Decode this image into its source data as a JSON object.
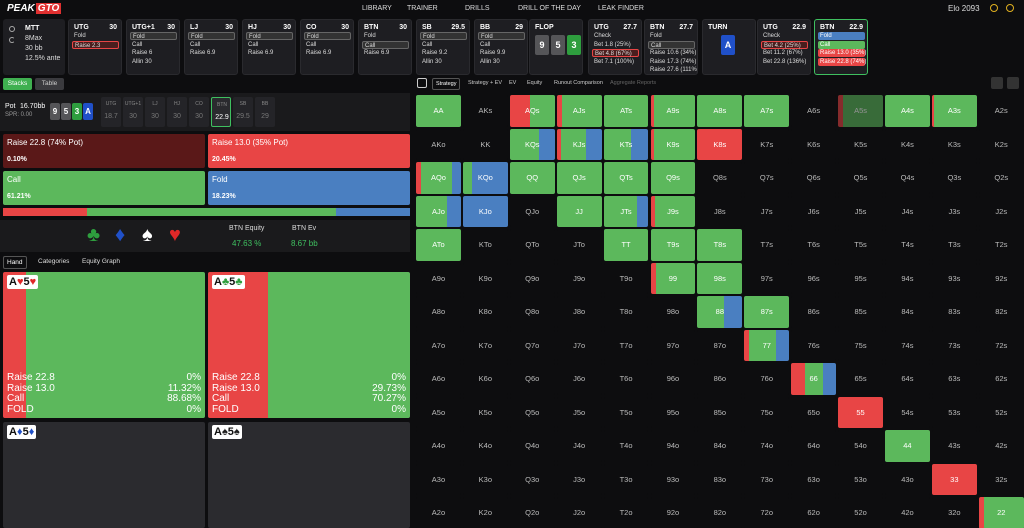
{
  "nav": {
    "logo_a": "PEAK",
    "logo_b": "GTO",
    "items": [
      "LIBRARY",
      "TRAINER",
      "DRILLS",
      "DRILL OF THE DAY",
      "LEAK FINDER"
    ],
    "elo": "Elo 2093"
  },
  "game_info": {
    "format": "MTT",
    "table": "8Max",
    "stack": "30 bb",
    "ante": "12.5% ante"
  },
  "action_strip": [
    {
      "kind": "player",
      "position": "UTG",
      "stack": 30,
      "options": [
        "Fold",
        "Raise 2.3"
      ],
      "selected": 1
    },
    {
      "kind": "player",
      "position": "UTG+1",
      "stack": 30,
      "options": [
        "Fold",
        "Call",
        "Raise 6",
        "Allin 30"
      ],
      "selected": 0
    },
    {
      "kind": "player",
      "position": "LJ",
      "stack": 30,
      "options": [
        "Fold",
        "Call",
        "Raise 6.9"
      ],
      "selected": 0
    },
    {
      "kind": "player",
      "position": "HJ",
      "stack": 30,
      "options": [
        "Fold",
        "Call",
        "Raise 6.9"
      ],
      "selected": 0
    },
    {
      "kind": "player",
      "position": "CO",
      "stack": 30,
      "options": [
        "Fold",
        "Call",
        "Raise 6.9"
      ],
      "selected": 0
    },
    {
      "kind": "player",
      "position": "BTN",
      "stack": 30,
      "options": [
        "Fold",
        "Call",
        "Raise 6.9"
      ],
      "selected": 1
    },
    {
      "kind": "player",
      "position": "SB",
      "stack": 29.5,
      "options": [
        "Fold",
        "Call",
        "Raise 9.2",
        "Allin 30"
      ],
      "selected": 0
    },
    {
      "kind": "player",
      "position": "BB",
      "stack": 29,
      "options": [
        "Fold",
        "Call",
        "Raise 9.9",
        "Allin 30"
      ],
      "selected": 0
    },
    {
      "kind": "street",
      "street": "FLOP",
      "cards": [
        {
          "rank": "9",
          "color": "#555558"
        },
        {
          "rank": "5",
          "color": "#555558"
        },
        {
          "rank": "3",
          "color": "#2e9e3e"
        }
      ]
    },
    {
      "kind": "player",
      "position": "UTG",
      "stack": 27.7,
      "options": [
        "Check",
        "Bet 1.8 (25%)",
        "Bet 4.8 (67%)",
        "Bet 7.1 (100%)"
      ],
      "selected": 2
    },
    {
      "kind": "player",
      "position": "BTN",
      "stack": 27.7,
      "options": [
        "Fold",
        "Call",
        "Raise 10.6 (34%)",
        "Raise 17.3 (74%)",
        "Raise 27.6 (111%)"
      ],
      "selected": 1
    },
    {
      "kind": "street",
      "street": "TURN",
      "cards": [
        {
          "rank": "A",
          "color": "#2050c8"
        }
      ]
    },
    {
      "kind": "player",
      "position": "UTG",
      "stack": 22.9,
      "options": [
        "Check",
        "Bet 4.2 (25%)",
        "Bet 11.2 (67%)",
        "Bet 22.8 (136%)"
      ],
      "selected": 1
    },
    {
      "kind": "player",
      "position": "BTN",
      "stack": 22.9,
      "options": [
        "Fold",
        "Call",
        "Raise 13.0 (35%)",
        "Raise 22.8 (74%)"
      ],
      "active": true,
      "option_colors": [
        "#4a7fc1",
        "#5cb85c",
        "#e84545",
        "#e84545"
      ]
    }
  ],
  "left_tabs": [
    "Stacks",
    "Table"
  ],
  "pot": {
    "label": "Pot",
    "amount": "16.70bb",
    "spr": "SPR: 0.00",
    "board": [
      {
        "rank": "9",
        "color": "#555558"
      },
      {
        "rank": "5",
        "color": "#555558"
      },
      {
        "rank": "3",
        "color": "#2e9e3e"
      },
      {
        "rank": "A",
        "color": "#2050c8"
      }
    ]
  },
  "seats": [
    {
      "position": "UTG",
      "stack": 18.7
    },
    {
      "position": "UTG+1",
      "stack": 30
    },
    {
      "position": "LJ",
      "stack": 30
    },
    {
      "position": "HJ",
      "stack": 30
    },
    {
      "position": "CO",
      "stack": 30
    },
    {
      "position": "BTN",
      "stack": 22.9
    },
    {
      "position": "SB",
      "stack": 29.5
    },
    {
      "position": "BB",
      "stack": 29
    }
  ],
  "active_seat": 5,
  "actions": [
    {
      "name": "Raise 22.8 (74% Pot)",
      "freq": {
        "value": 0.1,
        "label": "0.10%"
      },
      "color": "#8a1f1f",
      "bg": "#5a1818"
    },
    {
      "name": "Raise 13.0 (35% Pot)",
      "freq": {
        "value": 20.45,
        "label": "20.45%"
      },
      "color": "#e84545",
      "bg": "#e84545"
    },
    {
      "name": "Call",
      "freq": {
        "value": 61.21,
        "label": "61.21%"
      },
      "color": "#5cb85c",
      "bg": "#5cb85c"
    },
    {
      "name": "Fold",
      "freq": {
        "value": 18.23,
        "label": "18.23%"
      },
      "color": "#4a7fc1",
      "bg": "#4a7fc1"
    }
  ],
  "suits": [
    {
      "glyph": "♣",
      "color": "#2e9e3e"
    },
    {
      "glyph": "♦",
      "color": "#2050c8"
    },
    {
      "glyph": "♠",
      "color": "#ffffff"
    },
    {
      "glyph": "♥",
      "color": "#e02828"
    }
  ],
  "equity": {
    "equity_label": "BTN Equity",
    "equity": "47.63 %",
    "ev_label": "BTN Ev",
    "ev": "8.67 bb"
  },
  "hand_tabs": [
    "Hand",
    "Categories",
    "Equity Graph"
  ],
  "hand_cards": [
    {
      "rank1": "A",
      "suit1": "♥",
      "rank2": "5",
      "suit2": "♥",
      "suit_color": "#e02828",
      "rows": [
        {
          "name": "Raise 22.8",
          "value": {
            "value": 0,
            "label": "0%"
          }
        },
        {
          "name": "Raise 13.0",
          "value": {
            "value": 11.32,
            "label": "11.32%"
          }
        },
        {
          "name": "Call",
          "value": {
            "value": 88.68,
            "label": "88.68%"
          }
        },
        {
          "name": "FOLD",
          "value": {
            "value": 0,
            "label": "0%"
          }
        }
      ]
    },
    {
      "rank1": "A",
      "suit1": "♣",
      "rank2": "5",
      "suit2": "♣",
      "suit_color": "#2e9e3e",
      "rows": [
        {
          "name": "Raise 22.8",
          "value": {
            "value": 0,
            "label": "0%"
          }
        },
        {
          "name": "Raise 13.0",
          "value": {
            "value": 29.73,
            "label": "29.73%"
          }
        },
        {
          "name": "Call",
          "value": {
            "value": 70.27,
            "label": "70.27%"
          }
        },
        {
          "name": "FOLD",
          "value": {
            "value": 0,
            "label": "0%"
          }
        }
      ]
    },
    {
      "rank1": "A",
      "suit1": "♦",
      "rank2": "5",
      "suit2": "♦",
      "suit_color": "#2050c8"
    },
    {
      "rank1": "A",
      "suit1": "♠",
      "rank2": "5",
      "suit2": "♠",
      "suit_color": "#222222"
    }
  ],
  "matrix_tabs": [
    "Strategy",
    "Strategy + EV",
    "EV",
    "Equity",
    "Runout Comparison",
    "Aggregate Reports"
  ],
  "hand_matrix": {
    "rows": [
      [
        "AA",
        "AKs",
        "AQs",
        "AJs",
        "ATs",
        "A9s",
        "A8s",
        "A7s",
        "A6s",
        "A5s",
        "A4s",
        "A3s",
        "A2s"
      ],
      [
        "AKo",
        "KK",
        "KQs",
        "KJs",
        "KTs",
        "K9s",
        "K8s",
        "K7s",
        "K6s",
        "K5s",
        "K4s",
        "K3s",
        "K2s"
      ],
      [
        "AQo",
        "KQo",
        "QQ",
        "QJs",
        "QTs",
        "Q9s",
        "Q8s",
        "Q7s",
        "Q6s",
        "Q5s",
        "Q4s",
        "Q3s",
        "Q2s"
      ],
      [
        "AJo",
        "KJo",
        "QJo",
        "JJ",
        "JTs",
        "J9s",
        "J8s",
        "J7s",
        "J6s",
        "J5s",
        "J4s",
        "J3s",
        "J2s"
      ],
      [
        "ATo",
        "KTo",
        "QTo",
        "JTo",
        "TT",
        "T9s",
        "T8s",
        "T7s",
        "T6s",
        "T5s",
        "T4s",
        "T3s",
        "T2s"
      ],
      [
        "A9o",
        "K9o",
        "Q9o",
        "J9o",
        "T9o",
        "99",
        "98s",
        "97s",
        "96s",
        "95s",
        "94s",
        "93s",
        "92s"
      ],
      [
        "A8o",
        "K8o",
        "Q8o",
        "J8o",
        "T8o",
        "98o",
        "88",
        "87s",
        "86s",
        "85s",
        "84s",
        "83s",
        "82s"
      ],
      [
        "A7o",
        "K7o",
        "Q7o",
        "J7o",
        "T7o",
        "97o",
        "87o",
        "77",
        "76s",
        "75s",
        "74s",
        "73s",
        "72s"
      ],
      [
        "A6o",
        "K6o",
        "Q6o",
        "J6o",
        "T6o",
        "96o",
        "86o",
        "76o",
        "66",
        "65s",
        "64s",
        "63s",
        "62s"
      ],
      [
        "A5o",
        "K5o",
        "Q5o",
        "J5o",
        "T5o",
        "95o",
        "85o",
        "75o",
        "65o",
        "55",
        "54s",
        "53s",
        "52s"
      ],
      [
        "A4o",
        "K4o",
        "Q4o",
        "J4o",
        "T4o",
        "94o",
        "84o",
        "74o",
        "64o",
        "54o",
        "44",
        "43s",
        "42s"
      ],
      [
        "A3o",
        "K3o",
        "Q3o",
        "J3o",
        "T3o",
        "93o",
        "83o",
        "73o",
        "63o",
        "53o",
        "43o",
        "33",
        "32s"
      ],
      [
        "A2o",
        "K2o",
        "Q2o",
        "J2o",
        "T2o",
        "92o",
        "82o",
        "72o",
        "62o",
        "52o",
        "42o",
        "32o",
        "22"
      ]
    ],
    "mixes": {
      "AA": [
        0,
        0,
        100,
        0
      ],
      "AQs": [
        0,
        45,
        55,
        0
      ],
      "AJs": [
        0,
        12,
        88,
        0
      ],
      "ATs": [
        0,
        0,
        100,
        0
      ],
      "A9s": [
        0,
        8,
        92,
        0
      ],
      "A8s": [
        0,
        0,
        100,
        0
      ],
      "A7s": [
        0,
        0,
        100,
        0
      ],
      "A5s": [
        0,
        12,
        88,
        0
      ],
      "A4s": [
        0,
        0,
        100,
        0
      ],
      "A3s": [
        0,
        5,
        95,
        0
      ],
      "KQs": [
        0,
        0,
        65,
        35
      ],
      "KJs": [
        0,
        10,
        55,
        35
      ],
      "KTs": [
        0,
        0,
        60,
        40
      ],
      "K9s": [
        0,
        8,
        92,
        0
      ],
      "K8s": [
        0,
        100,
        0,
        0
      ],
      "AQo": [
        0,
        12,
        68,
        20
      ],
      "KQo": [
        0,
        0,
        20,
        80
      ],
      "QQ": [
        0,
        0,
        100,
        0
      ],
      "QJs": [
        0,
        0,
        100,
        0
      ],
      "QTs": [
        0,
        0,
        100,
        0
      ],
      "Q9s": [
        0,
        0,
        100,
        0
      ],
      "AJo": [
        0,
        0,
        70,
        30
      ],
      "KJo": [
        0,
        0,
        0,
        100
      ],
      "JJ": [
        0,
        0,
        100,
        0
      ],
      "JTs": [
        0,
        0,
        75,
        25
      ],
      "J9s": [
        0,
        10,
        90,
        0
      ],
      "ATo": [
        0,
        0,
        100,
        0
      ],
      "TT": [
        0,
        0,
        100,
        0
      ],
      "T9s": [
        0,
        0,
        100,
        0
      ],
      "T8s": [
        0,
        0,
        100,
        0
      ],
      "99": [
        0,
        12,
        88,
        0
      ],
      "98s": [
        0,
        0,
        100,
        0
      ],
      "88": [
        0,
        0,
        60,
        40
      ],
      "87s": [
        0,
        0,
        100,
        0
      ],
      "77": [
        0,
        10,
        60,
        30
      ],
      "66": [
        0,
        30,
        40,
        30
      ],
      "55": [
        0,
        100,
        0,
        0
      ],
      "44": [
        0,
        0,
        100,
        0
      ],
      "33": [
        0,
        100,
        0,
        0
      ],
      "22": [
        0,
        12,
        88,
        0
      ]
    },
    "dimmed": [
      "A5s"
    ]
  }
}
